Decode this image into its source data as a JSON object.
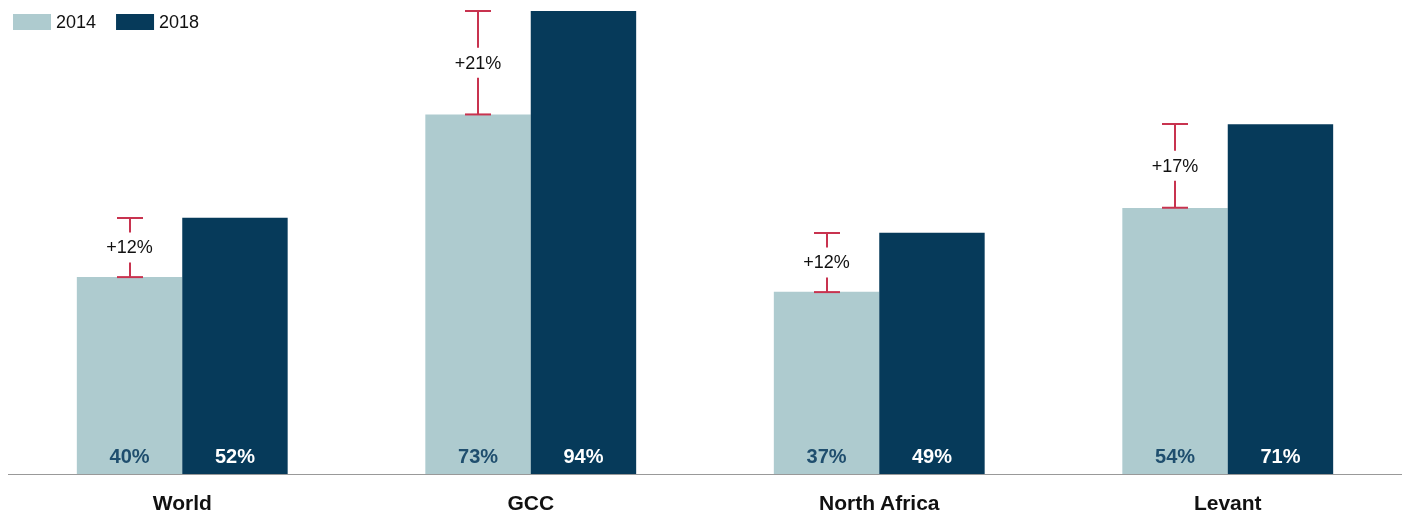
{
  "chart_data": {
    "type": "bar",
    "categories": [
      "World",
      "GCC",
      "North Africa",
      "Levant"
    ],
    "series": [
      {
        "name": "2014",
        "color": "#aecbcf",
        "values": [
          40,
          73,
          37,
          54
        ],
        "value_labels": [
          "40%",
          "73%",
          "37%",
          "54%"
        ]
      },
      {
        "name": "2018",
        "color": "#063a5a",
        "values": [
          52,
          94,
          49,
          71
        ],
        "value_labels": [
          "52%",
          "94%",
          "49%",
          "71%"
        ]
      }
    ],
    "annotations": [
      {
        "text": "+12%",
        "x": "World",
        "y": 46
      },
      {
        "text": "+21%",
        "x": "GCC",
        "y": 83.5
      },
      {
        "text": "+12%",
        "x": "North Africa",
        "y": 43
      },
      {
        "text": "+17%",
        "x": "Levant",
        "y": 62.5
      }
    ],
    "legend": "top left",
    "grid": false
  }
}
